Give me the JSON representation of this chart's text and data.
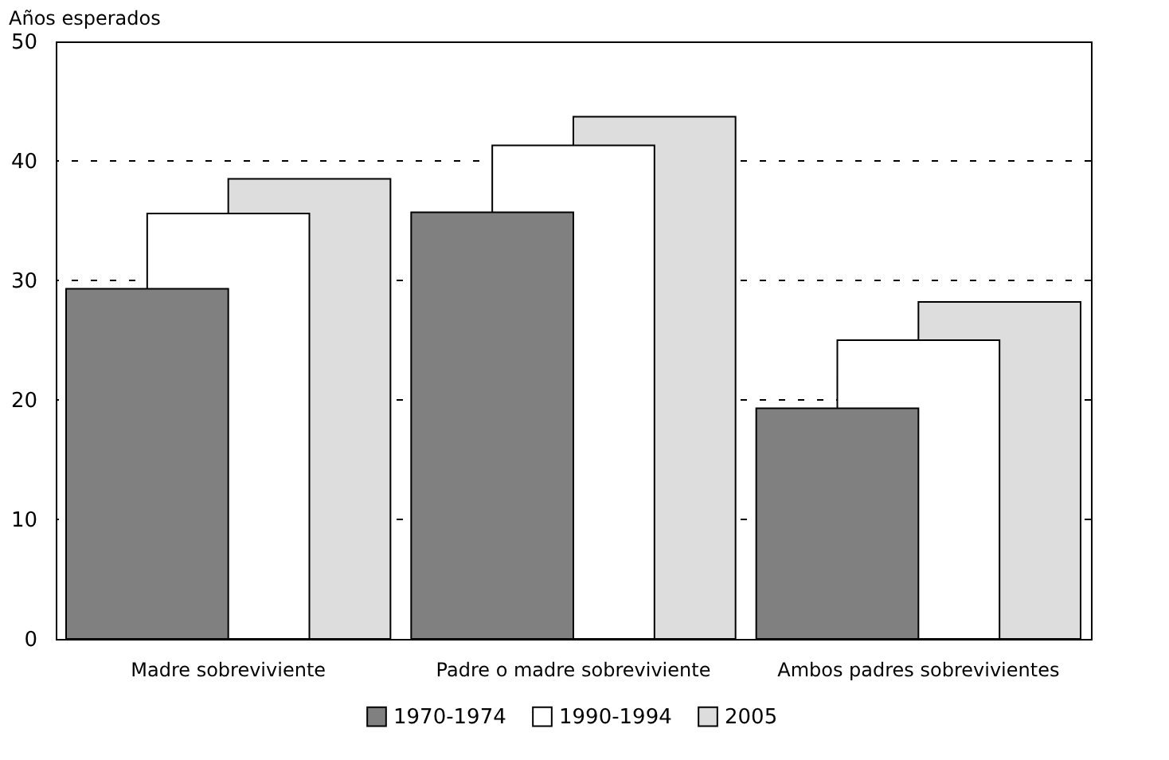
{
  "chart_data": {
    "type": "bar",
    "ylabel": "Años esperados",
    "categories": [
      "Madre sobreviviente",
      "Padre o madre sobreviviente",
      "Ambos padres sobrevivientes"
    ],
    "series": [
      {
        "name": "1970-1974",
        "color": "#808080",
        "values": [
          29.3,
          35.7,
          19.3
        ]
      },
      {
        "name": "1990-1994",
        "color": "#ffffff",
        "values": [
          35.6,
          41.3,
          25.0
        ]
      },
      {
        "name": "2005",
        "color": "#dddddd",
        "values": [
          38.5,
          43.7,
          28.2
        ]
      }
    ],
    "ylim": [
      0,
      50
    ],
    "yticks": [
      0,
      10,
      20,
      30,
      40,
      50
    ],
    "grid": "y",
    "legend": "bottom"
  }
}
